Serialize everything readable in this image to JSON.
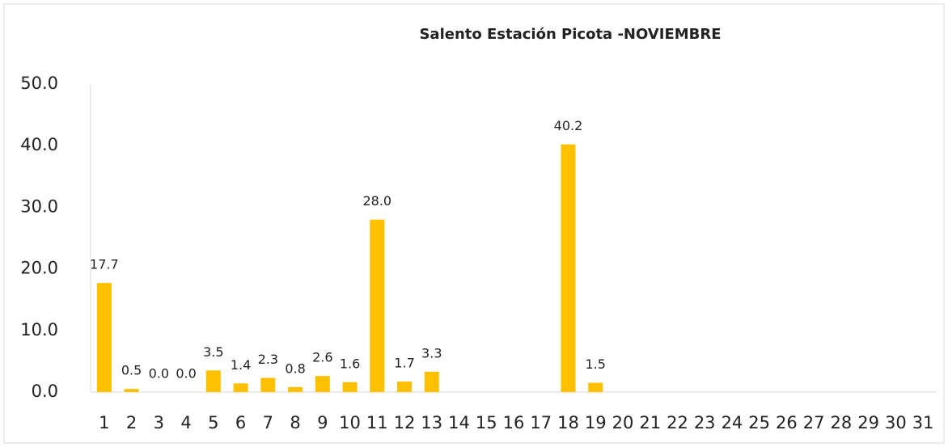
{
  "chart_data": {
    "type": "bar",
    "title": "Salento Estación Picota -NOVIEMBRE",
    "categories": [
      "1",
      "2",
      "3",
      "4",
      "5",
      "6",
      "7",
      "8",
      "9",
      "10",
      "11",
      "12",
      "13",
      "14",
      "15",
      "16",
      "17",
      "18",
      "19",
      "20",
      "21",
      "22",
      "23",
      "24",
      "25",
      "26",
      "27",
      "28",
      "29",
      "30",
      "31"
    ],
    "values": [
      17.7,
      0.5,
      0,
      0,
      3.5,
      1.4,
      2.3,
      0.8,
      2.6,
      1.6,
      28,
      1.7,
      3.3,
      null,
      null,
      null,
      null,
      40.2,
      1.5,
      null,
      null,
      null,
      null,
      null,
      null,
      null,
      null,
      null,
      null,
      null,
      null
    ],
    "value_labels": [
      "17.7",
      "0.5",
      "0.0",
      "0.0",
      "3.5",
      "1.4",
      "2.3",
      "0.8",
      "2.6",
      "1.6",
      "28.0",
      "1.7",
      "3.3",
      null,
      null,
      null,
      null,
      "40.2",
      "1.5",
      null,
      null,
      null,
      null,
      null,
      null,
      null,
      null,
      null,
      null,
      null,
      null
    ],
    "color": "#ffc000",
    "ylim": [
      0,
      50
    ],
    "yticks": [
      {
        "value": 0,
        "label": "0.0"
      },
      {
        "value": 10,
        "label": "10.0"
      },
      {
        "value": 20,
        "label": "20.0"
      },
      {
        "value": 30,
        "label": "30.0"
      },
      {
        "value": 40,
        "label": "40.0"
      },
      {
        "value": 50,
        "label": "50.0"
      }
    ],
    "grid": false
  }
}
